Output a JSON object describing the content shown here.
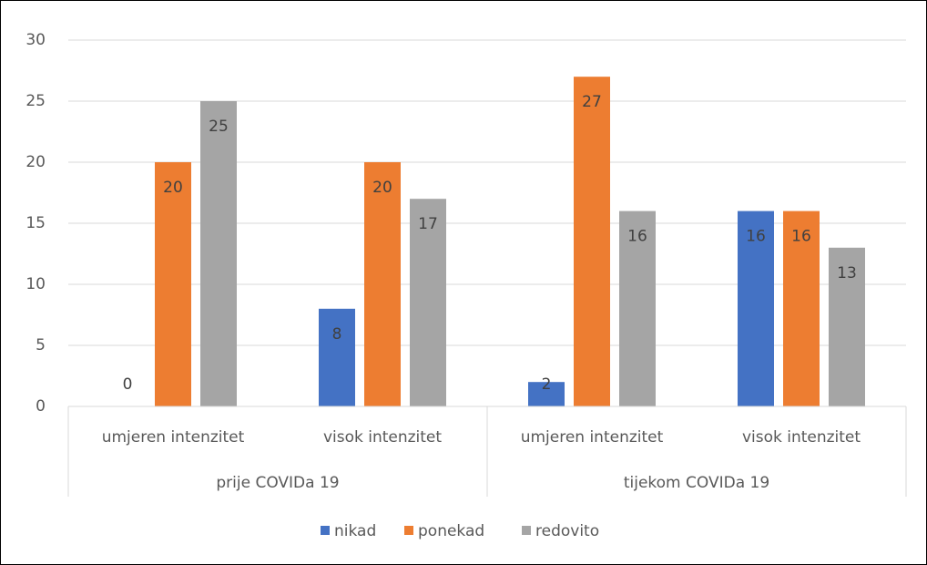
{
  "chart_data": {
    "type": "bar",
    "categories": [
      "umjeren intenzitet",
      "visok intenzitet",
      "umjeren intenzitet",
      "visok intenzitet"
    ],
    "groups": [
      "prije COVIDa 19",
      "tijekom COVIDa 19"
    ],
    "series": [
      {
        "name": "nikad",
        "color": "#4472c4",
        "values": [
          0,
          8,
          2,
          16
        ]
      },
      {
        "name": "ponekad",
        "color": "#ed7d31",
        "values": [
          20,
          20,
          27,
          16
        ]
      },
      {
        "name": "redovito",
        "color": "#a5a5a5",
        "values": [
          25,
          17,
          16,
          13
        ]
      }
    ],
    "ylim": [
      0,
      30
    ],
    "yticks": [
      0,
      5,
      10,
      15,
      20,
      25,
      30
    ],
    "grid": true,
    "legend": "bottom"
  }
}
